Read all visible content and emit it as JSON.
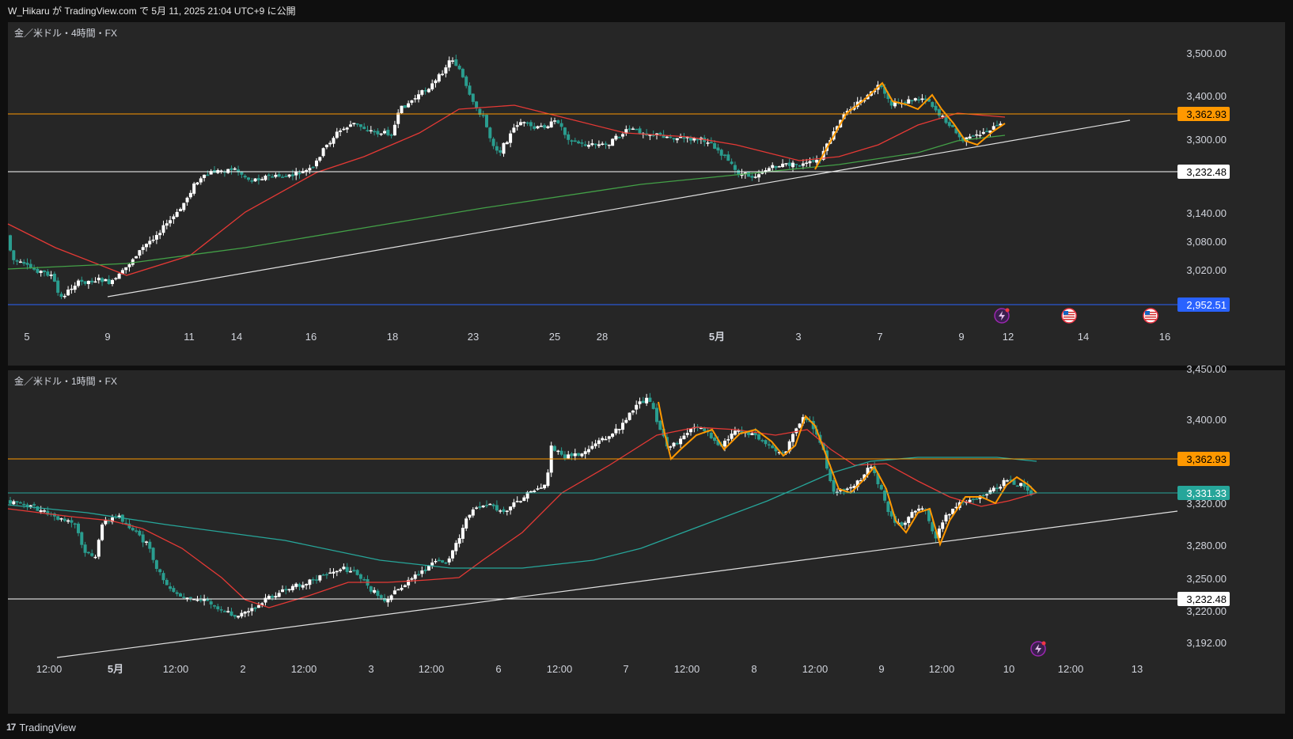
{
  "header": {
    "publish_text": "W_Hikaru が TradingView.com で 5月 11, 2025 21:04 UTC+9 に公開"
  },
  "footer": {
    "brand": "TradingView",
    "logo_glyph": "17"
  },
  "colors": {
    "up": "#ffffff",
    "down": "#2a9d8f",
    "orange": "#ff9800",
    "blue": "#2962ff",
    "red_ma": "#e53935",
    "green_ma": "#43a047",
    "teal_ma": "#26a69a"
  },
  "panes": [
    {
      "label": "金／米ドル・4時間・FX",
      "y_ticks": [
        "3,500.00",
        "3,400.00",
        "3,300.00",
        "3,140.00",
        "3,080.00",
        "3,020.00"
      ],
      "x_ticks": [
        "5",
        "9",
        "11",
        "14",
        "16",
        "18",
        "23",
        "25",
        "28",
        "5月",
        "3",
        "7",
        "9",
        "12",
        "14",
        "16"
      ],
      "levels": [
        {
          "label": "3,362.93",
          "color": "#ff9800",
          "text_color": "#000000"
        },
        {
          "label": "3,232.48",
          "color": "#ffffff",
          "text_color": "#000000"
        },
        {
          "label": "2,952.51",
          "color": "#2962ff",
          "text_color": "#ffffff"
        }
      ],
      "event_icons": [
        "lightning-icon",
        "us-flag-icon",
        "us-flag-icon"
      ]
    },
    {
      "label": "金／米ドル・1時間・FX",
      "y_ticks": [
        "3,450.00",
        "3,400.00",
        "3,320.00",
        "3,280.00",
        "3,250.00",
        "3,220.00",
        "3,192.00"
      ],
      "x_ticks": [
        "12:00",
        "5月",
        "12:00",
        "2",
        "12:00",
        "3",
        "12:00",
        "6",
        "12:00",
        "7",
        "12:00",
        "8",
        "12:00",
        "9",
        "12:00",
        "10",
        "12:00",
        "13"
      ],
      "levels": [
        {
          "label": "3,362.93",
          "color": "#ff9800",
          "text_color": "#000000"
        },
        {
          "label": "3,331.33",
          "color": "#26a69a",
          "text_color": "#ffffff"
        },
        {
          "label": "3,232.48",
          "color": "#ffffff",
          "text_color": "#000000"
        }
      ],
      "event_icons": [
        "lightning-icon"
      ]
    }
  ]
}
